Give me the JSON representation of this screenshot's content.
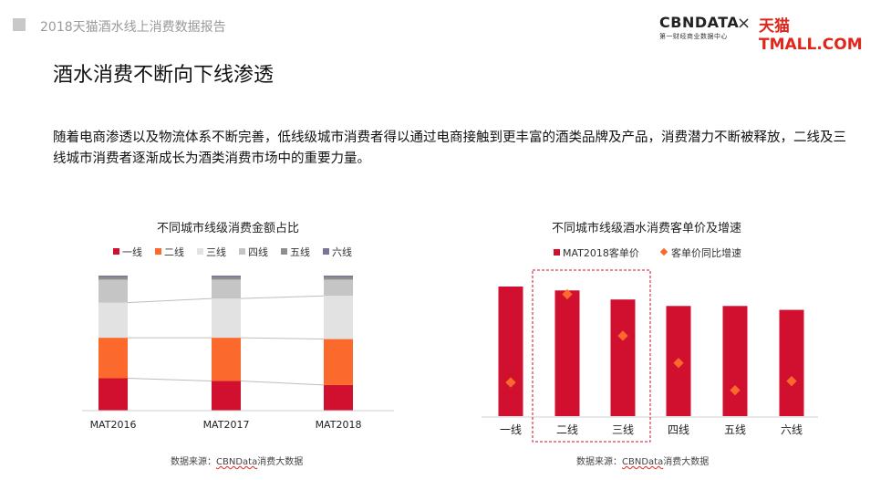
{
  "header": {
    "report_title": "2018天猫酒水线上消费数据报告",
    "logo_cbn": "CBNDATA",
    "logo_cbn_sub": "第一财经商业数据中心",
    "logo_x": "×",
    "logo_tmall": "天猫 TMALL.COM"
  },
  "page": {
    "title": "酒水消费不断向下线渗透",
    "body": "随着电商渗透以及物流体系不断完善，低线级城市消费者得以通过电商接触到更丰富的酒类品牌及产品，消费潜力不断被释放，二线及三线城市消费者逐渐成长为酒类消费市场中的重要力量。"
  },
  "colors": {
    "tier1": "#d0102e",
    "tier2": "#fb6a2c",
    "tier3": "#e2e2e2",
    "tier4": "#c5c5c5",
    "tier5": "#8e8e8e",
    "tier6": "#777795",
    "diamond": "#fb6a2c",
    "highlight_box": "#d0102e"
  },
  "chart_data": [
    {
      "type": "bar",
      "stacked": true,
      "percent": true,
      "title": "不同城市线级消费金额占比",
      "categories": [
        "MAT2016",
        "MAT2017",
        "MAT2018"
      ],
      "series": [
        {
          "name": "一线",
          "values": [
            24,
            22,
            19
          ]
        },
        {
          "name": "二线",
          "values": [
            30,
            32,
            34
          ]
        },
        {
          "name": "三线",
          "values": [
            26,
            29,
            32
          ]
        },
        {
          "name": "四线",
          "values": [
            17,
            14,
            12
          ]
        },
        {
          "name": "五线",
          "values": [
            2,
            2,
            2
          ]
        },
        {
          "name": "六线",
          "values": [
            1,
            1,
            1
          ]
        }
      ],
      "legend_position": "top",
      "ylim": [
        0,
        100
      ],
      "source": {
        "prefix": "数据来源：",
        "brand": "CBNData",
        "suffix": "消费大数据"
      }
    },
    {
      "type": "bar",
      "title": "不同城市线级酒水消费客单价及增速",
      "categories": [
        "一线",
        "二线",
        "三线",
        "四线",
        "五线",
        "六线"
      ],
      "series": [
        {
          "name": "MAT2018客单价",
          "type": "bar",
          "values": [
            100,
            97,
            90,
            85,
            85,
            82
          ]
        },
        {
          "name": "客单价同比增速",
          "type": "scatter",
          "values": [
            26,
            94,
            62,
            41,
            20,
            27
          ]
        }
      ],
      "highlight_categories": [
        "二线",
        "三线"
      ],
      "legend_position": "top",
      "ylim": [
        0,
        100
      ],
      "source": {
        "prefix": "数据来源：",
        "brand": "CBNData",
        "suffix": "消费大数据"
      }
    }
  ]
}
